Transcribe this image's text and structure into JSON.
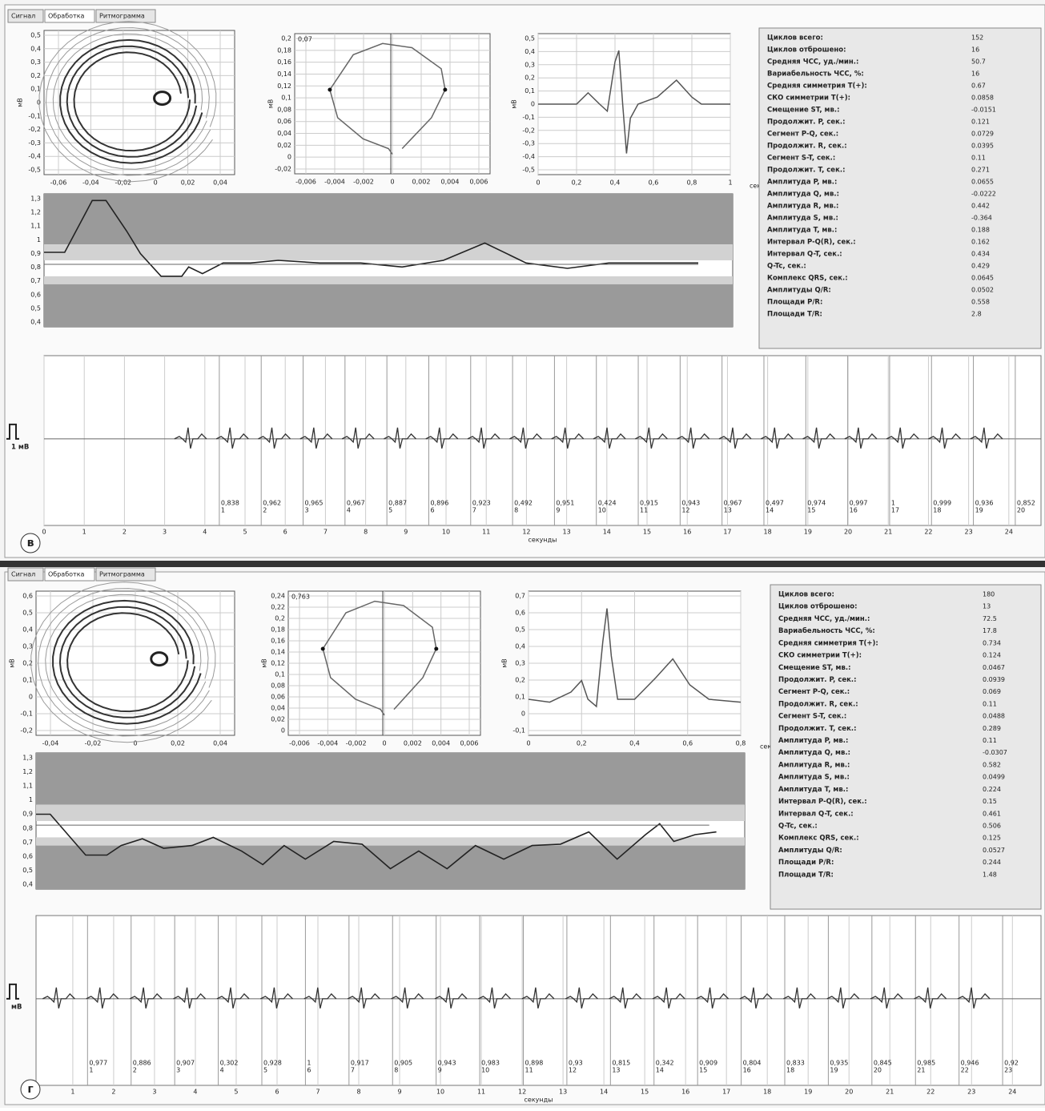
{
  "panels": [
    {
      "label": "в",
      "tabs": [
        "Сигнал",
        "Обработка",
        "Ритмограмма"
      ],
      "plot1": {
        "ylabel": "мВ",
        "yticks": [
          "0,5",
          "0,4",
          "0,3",
          "0,2",
          "0,1",
          "0",
          "-0,1",
          "-0,2",
          "-0,3",
          "-0,4",
          "-0,5"
        ],
        "xticks": [
          "-0,06",
          "-0,04",
          "-0,02",
          "0",
          "0,02",
          "0,04"
        ]
      },
      "plot2": {
        "annotation": "0,07",
        "ylabel": "мВ",
        "yticks": [
          "0,2",
          "0,18",
          "0,16",
          "0,14",
          "0,12",
          "0,1",
          "0,08",
          "0,06",
          "0,04",
          "0,02",
          "0",
          "-0,02"
        ],
        "xticks": [
          "-0,006",
          "-0,004",
          "-0,002",
          "0",
          "0,002",
          "0,004",
          "0,006"
        ]
      },
      "plot3": {
        "ylabel": "мВ",
        "xunit": "сек.",
        "yticks": [
          "0,5",
          "0,4",
          "0,3",
          "0,2",
          "0,1",
          "0",
          "-0,1",
          "-0,2",
          "-0,3",
          "-0,4",
          "-0,5"
        ],
        "xticks": [
          "0",
          "0,2",
          "0,4",
          "0,6",
          "0,8",
          "1"
        ]
      },
      "rhythm": {
        "yticks": [
          "1,3",
          "1,2",
          "1,1",
          "1",
          "0,9",
          "0,8",
          "0,7",
          "0,6",
          "0,5",
          "0,4"
        ]
      },
      "stats": [
        [
          "Циклов всего:",
          "152"
        ],
        [
          "Циклов отброшено:",
          "16"
        ],
        [
          "Средняя ЧСС, уд./мин.:",
          "50.7"
        ],
        [
          "Вариабельность ЧСС, %:",
          "16"
        ],
        [
          "Средняя симметрия T(+):",
          "0.67"
        ],
        [
          "СКО симметрии T(+):",
          "0.0858"
        ],
        [
          "Смещение ST, мв.:",
          "-0.0151"
        ],
        [
          "Продолжит. P, сек.:",
          "0.121"
        ],
        [
          "Сегмент P-Q, сек.:",
          "0.0729"
        ],
        [
          "Продолжит. R, сек.:",
          "0.0395"
        ],
        [
          "Сегмент S-T, сек.:",
          "0.11"
        ],
        [
          "Продолжит. T, сек.:",
          "0.271"
        ],
        [
          "Амплитуда P, мв.:",
          "0.0655"
        ],
        [
          "Амплитуда Q, мв.:",
          "-0.0222"
        ],
        [
          "Амплитуда R, мв.:",
          "0.442"
        ],
        [
          "Амплитуда S, мв.:",
          "-0.364"
        ],
        [
          "Амплитуда T, мв.:",
          "0.188"
        ],
        [
          "Интервал P-Q(R), сек.:",
          "0.162"
        ],
        [
          "Интервал Q-T, сек.:",
          "0.434"
        ],
        [
          "Q-Tc, сек.:",
          "0.429"
        ],
        [
          "Комплекс QRS, сек.:",
          "0.0645"
        ],
        [
          "Амплитуды Q/R:",
          "0.0502"
        ],
        [
          "Площади P/R:",
          "0.558"
        ],
        [
          "Площади T/R:",
          "2.8"
        ]
      ],
      "strip": {
        "scale": "1 мВ",
        "xlabel": "секунды",
        "xlim": [
          0,
          24.8
        ],
        "xticks": [
          0,
          1,
          2,
          3,
          4,
          5,
          6,
          7,
          8,
          9,
          10,
          11,
          12,
          13,
          14,
          15,
          16,
          17,
          18,
          19,
          20,
          21,
          22,
          23,
          24
        ],
        "intervals": [
          [
            "0,838",
            "1"
          ],
          [
            "0,962",
            "2"
          ],
          [
            "0,965",
            "3"
          ],
          [
            "0,967",
            "4"
          ],
          [
            "0,887",
            "5"
          ],
          [
            "0,896",
            "6"
          ],
          [
            "0,923",
            "7"
          ],
          [
            "0,492",
            "8"
          ],
          [
            "0,951",
            "9"
          ],
          [
            "0,424",
            "10"
          ],
          [
            "0,915",
            "11"
          ],
          [
            "0,943",
            "12"
          ],
          [
            "0,967",
            "13"
          ],
          [
            "0,497",
            "14"
          ],
          [
            "0,974",
            "15"
          ],
          [
            "0,997",
            "16"
          ],
          [
            "1",
            "17"
          ],
          [
            "0,999",
            "18"
          ],
          [
            "0,936",
            "19"
          ],
          [
            "0,852",
            "20"
          ]
        ]
      }
    },
    {
      "label": "г",
      "tabs": [
        "Сигнал",
        "Обработка",
        "Ритмограмма"
      ],
      "plot1": {
        "ylabel": "мВ",
        "yticks": [
          "0,6",
          "0,5",
          "0,4",
          "0,3",
          "0,2",
          "0,1",
          "0",
          "-0,1",
          "-0,2"
        ],
        "xticks": [
          "-0,04",
          "-0,02",
          "0",
          "0,02",
          "0,04"
        ]
      },
      "plot2": {
        "annotation": "0,763",
        "ylabel": "мВ",
        "yticks": [
          "0,24",
          "0,22",
          "0,2",
          "0,18",
          "0,16",
          "0,14",
          "0,12",
          "0,1",
          "0,08",
          "0,06",
          "0,04",
          "0,02",
          "0"
        ],
        "xticks": [
          "-0,006",
          "-0,004",
          "-0,002",
          "0",
          "0,002",
          "0,004",
          "0,006"
        ]
      },
      "plot3": {
        "ylabel": "мВ",
        "xunit": "сек.",
        "yticks": [
          "0,7",
          "0,6",
          "0,5",
          "0,4",
          "0,3",
          "0,2",
          "0,1",
          "0",
          "-0,1"
        ],
        "xticks": [
          "0",
          "0,2",
          "0,4",
          "0,6",
          "0,8"
        ]
      },
      "rhythm": {
        "yticks": [
          "1,3",
          "1,2",
          "1,1",
          "1",
          "0,9",
          "0,8",
          "0,7",
          "0,6",
          "0,5",
          "0,4"
        ]
      },
      "stats": [
        [
          "Циклов всего:",
          "180"
        ],
        [
          "Циклов отброшено:",
          "13"
        ],
        [
          "Средняя ЧСС, уд./мин.:",
          "72.5"
        ],
        [
          "Вариабельность ЧСС, %:",
          "17.8"
        ],
        [
          "Средняя симметрия T(+):",
          "0.734"
        ],
        [
          "СКО симметрии T(+):",
          "0.124"
        ],
        [
          "Смещение ST, мв.:",
          "0.0467"
        ],
        [
          "Продолжит. P, сек.:",
          "0.0939"
        ],
        [
          "Сегмент P-Q, сек.:",
          "0.069"
        ],
        [
          "Продолжит. R, сек.:",
          "0.11"
        ],
        [
          "Сегмент S-T, сек.:",
          "0.0488"
        ],
        [
          "Продолжит. T, сек.:",
          "0.289"
        ],
        [
          "Амплитуда P, мв.:",
          "0.11"
        ],
        [
          "Амплитуда Q, мв.:",
          "-0.0307"
        ],
        [
          "Амплитуда R, мв.:",
          "0.582"
        ],
        [
          "Амплитуда S, мв.:",
          "0.0499"
        ],
        [
          "Амплитуда T, мв.:",
          "0.224"
        ],
        [
          "Интервал P-Q(R), сек.:",
          "0.15"
        ],
        [
          "Интервал Q-T, сек.:",
          "0.461"
        ],
        [
          "Q-Tc, сек.:",
          "0.506"
        ],
        [
          "Комплекс QRS, сек.:",
          "0.125"
        ],
        [
          "Амплитуды Q/R:",
          "0.0527"
        ],
        [
          "Площади P/R:",
          "0.244"
        ],
        [
          "Площади T/R:",
          "1.48"
        ]
      ],
      "strip": {
        "scale": "мВ",
        "xlabel": "секунды",
        "xlim": [
          0.1,
          24.7
        ],
        "xticks": [
          1,
          2,
          3,
          4,
          5,
          6,
          7,
          8,
          9,
          10,
          11,
          12,
          13,
          14,
          15,
          16,
          17,
          18,
          19,
          20,
          21,
          22,
          23,
          24
        ],
        "intervals": [
          [
            "0,977",
            "1"
          ],
          [
            "0,886",
            "2"
          ],
          [
            "0,907",
            "3"
          ],
          [
            "0,302",
            "4"
          ],
          [
            "0,928",
            "5"
          ],
          [
            "1",
            "6"
          ],
          [
            "0,917",
            "7"
          ],
          [
            "0,905",
            "8"
          ],
          [
            "0,943",
            "9"
          ],
          [
            "0,983",
            "10"
          ],
          [
            "0,898",
            "11"
          ],
          [
            "0,93",
            "12"
          ],
          [
            "0,815",
            "13"
          ],
          [
            "0,342",
            "14"
          ],
          [
            "0,909",
            "15"
          ],
          [
            "0,804",
            "16"
          ],
          [
            "0,833",
            "18"
          ],
          [
            "0,935",
            "19"
          ],
          [
            "0,845",
            "20"
          ],
          [
            "0,985",
            "21"
          ],
          [
            "0,946",
            "22"
          ],
          [
            "0,92",
            "23"
          ]
        ]
      }
    }
  ]
}
